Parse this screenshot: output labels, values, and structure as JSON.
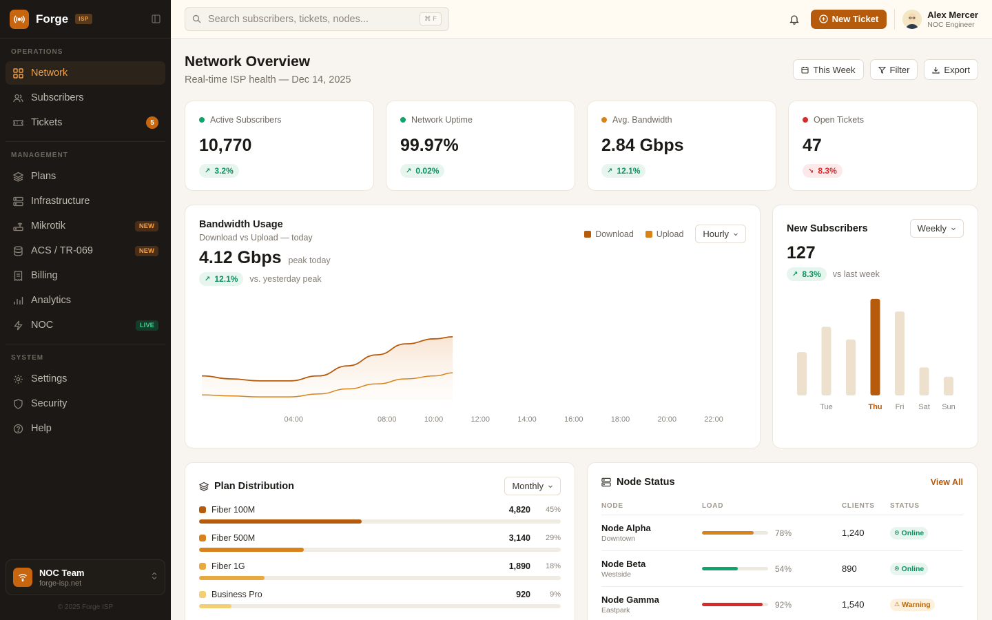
{
  "brand": {
    "name": "Forge",
    "badge": "ISP"
  },
  "sidebar": {
    "sections": [
      {
        "label": "OPERATIONS",
        "items": [
          {
            "label": "Network",
            "icon": "grid-icon",
            "active": true
          },
          {
            "label": "Subscribers",
            "icon": "users-icon"
          },
          {
            "label": "Tickets",
            "icon": "ticket-icon",
            "badge": "5",
            "badge_type": "count"
          }
        ]
      },
      {
        "label": "MANAGEMENT",
        "items": [
          {
            "label": "Plans",
            "icon": "layers-icon"
          },
          {
            "label": "Infrastructure",
            "icon": "server-icon"
          },
          {
            "label": "Mikrotik",
            "icon": "router-icon",
            "badge": "NEW",
            "badge_type": "new"
          },
          {
            "label": "ACS / TR-069",
            "icon": "database-icon",
            "badge": "NEW",
            "badge_type": "new"
          },
          {
            "label": "Billing",
            "icon": "receipt-icon"
          },
          {
            "label": "Analytics",
            "icon": "bar-chart-icon"
          },
          {
            "label": "NOC",
            "icon": "bolt-icon",
            "badge": "LIVE",
            "badge_type": "live"
          }
        ]
      },
      {
        "label": "SYSTEM",
        "items": [
          {
            "label": "Settings",
            "icon": "gear-icon"
          },
          {
            "label": "Security",
            "icon": "shield-icon"
          },
          {
            "label": "Help",
            "icon": "help-icon"
          }
        ]
      }
    ],
    "team": {
      "name": "NOC Team",
      "domain": "forge-isp.net"
    },
    "copyright": "© 2025 Forge ISP"
  },
  "topbar": {
    "search_placeholder": "Search subscribers, tickets, nodes...",
    "search_shortcut": "⌘ F",
    "new_ticket_label": "New Ticket",
    "user": {
      "name": "Alex Mercer",
      "role": "NOC Engineer"
    }
  },
  "page": {
    "title": "Network Overview",
    "subtitle": "Real-time ISP health — Dec 14, 2025",
    "actions": {
      "this_week": "This Week",
      "filter": "Filter",
      "export": "Export"
    }
  },
  "kpis": [
    {
      "label": "Active Subscribers",
      "value": "10,770",
      "delta": "3.2%",
      "dir": "up",
      "color": "#10a36b"
    },
    {
      "label": "Network Uptime",
      "value": "99.97%",
      "delta": "0.02%",
      "dir": "up",
      "color": "#10a36b"
    },
    {
      "label": "Avg. Bandwidth",
      "value": "2.84 Gbps",
      "delta": "12.1%",
      "dir": "up",
      "color": "#d8821b"
    },
    {
      "label": "Open Tickets",
      "value": "47",
      "delta": "8.3%",
      "dir": "down",
      "color": "#d42b2b"
    }
  ],
  "bandwidth": {
    "title": "Bandwidth Usage",
    "subtitle": "Download vs Upload — today",
    "peak_value": "4.12 Gbps",
    "peak_note": "peak today",
    "delta": "12.1%",
    "delta_note": "vs. yesterday peak",
    "legend_download": "Download",
    "legend_upload": "Upload",
    "period": "Hourly",
    "colors": {
      "download": "#b65a0c",
      "upload": "#d8821b"
    }
  },
  "new_subscribers": {
    "title": "New Subscribers",
    "period": "Weekly",
    "value": "127",
    "delta": "8.3%",
    "delta_note": "vs last week",
    "highlight_day": "Thu"
  },
  "chart_data": [
    {
      "type": "area",
      "series": [
        {
          "name": "Download",
          "values": [
            1.8,
            1.65,
            1.55,
            1.55,
            1.8,
            2.3,
            2.85,
            3.4,
            3.65,
            3.75
          ]
        },
        {
          "name": "Upload",
          "values": [
            0.85,
            0.8,
            0.75,
            0.75,
            0.9,
            1.15,
            1.4,
            1.65,
            1.8,
            1.95
          ]
        }
      ],
      "x": [
        0,
        1.25,
        2.5,
        3.75,
        5,
        6.25,
        7.5,
        8.75,
        10,
        10.75
      ],
      "ticks": [
        "04:00",
        "08:00",
        "10:00",
        "12:00",
        "14:00",
        "16:00",
        "18:00",
        "20:00",
        "22:00"
      ],
      "tick_x": [
        4,
        8,
        10,
        12,
        14,
        16,
        18,
        20,
        22
      ],
      "ylim": [
        0,
        5.5
      ],
      "xlim": [
        0,
        23.5
      ],
      "grid": false,
      "xlabel": "",
      "ylabel": ""
    },
    {
      "type": "bar",
      "categories": [
        "Mon",
        "Tue",
        "Wed",
        "Thu",
        "Fri",
        "Sat",
        "Sun"
      ],
      "shown_labels": [
        "",
        "Tue",
        "",
        "Thu",
        "Fri",
        "Sat",
        "Sun"
      ],
      "values": [
        65,
        103,
        84,
        145,
        126,
        42,
        28
      ],
      "ylim": [
        0,
        150
      ],
      "xlabel": "",
      "ylabel": ""
    }
  ],
  "plans": {
    "title": "Plan Distribution",
    "period": "Monthly",
    "items": [
      {
        "name": "Fiber 100M",
        "count": "4,820",
        "pct": "45%",
        "share": 0.45,
        "color": "#b65a0c"
      },
      {
        "name": "Fiber 500M",
        "count": "3,140",
        "pct": "29%",
        "share": 0.29,
        "color": "#d8821b"
      },
      {
        "name": "Fiber 1G",
        "count": "1,890",
        "pct": "18%",
        "share": 0.18,
        "color": "#e8a93e"
      },
      {
        "name": "Business Pro",
        "count": "920",
        "pct": "9%",
        "share": 0.09,
        "color": "#f2cf72"
      }
    ]
  },
  "nodes": {
    "title": "Node Status",
    "view_all": "View All",
    "columns": [
      "NODE",
      "LOAD",
      "CLIENTS",
      "STATUS"
    ],
    "rows": [
      {
        "name": "Node Alpha",
        "location": "Downtown",
        "load": "78%",
        "load_frac": 0.78,
        "load_color": "#d8821b",
        "clients": "1,240",
        "status": "Online",
        "status_type": "ok"
      },
      {
        "name": "Node Beta",
        "location": "Westside",
        "load": "54%",
        "load_frac": 0.54,
        "load_color": "#10a36b",
        "clients": "890",
        "status": "Online",
        "status_type": "ok"
      },
      {
        "name": "Node Gamma",
        "location": "Eastpark",
        "load": "92%",
        "load_frac": 0.92,
        "load_color": "#d42b2b",
        "clients": "1,540",
        "status": "Warning",
        "status_type": "warn"
      }
    ]
  }
}
